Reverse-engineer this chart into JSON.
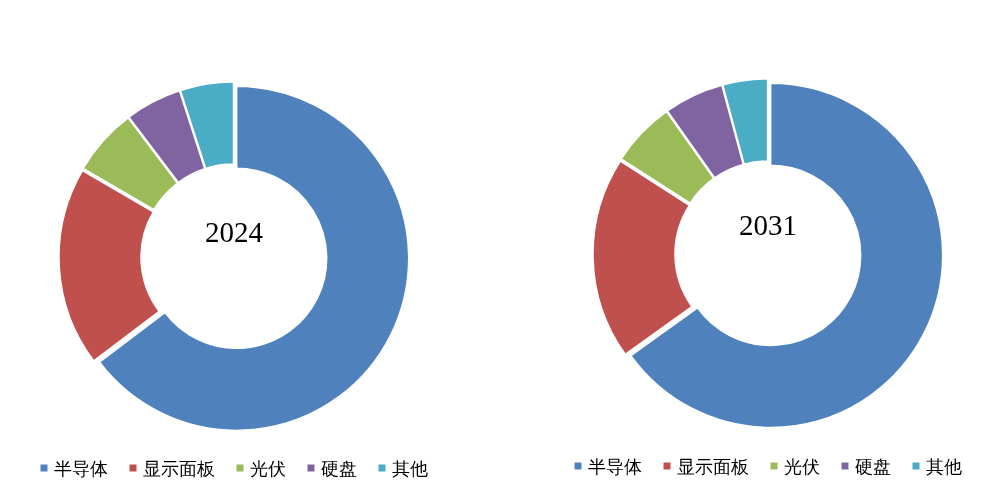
{
  "chart_data": [
    {
      "type": "donut",
      "title": "2024",
      "categories": [
        "半导体",
        "显示面板",
        "光伏",
        "硬盘",
        "其他"
      ],
      "values": [
        64.7,
        18.7,
        6.3,
        5.3,
        5.0
      ],
      "colors": [
        "#4f81bd",
        "#c0504d",
        "#9bbb59",
        "#8064a2",
        "#4bacc6"
      ],
      "legend": "bottom"
    },
    {
      "type": "donut",
      "title": "2031",
      "categories": [
        "半导体",
        "显示面板",
        "光伏",
        "硬盘",
        "其他"
      ],
      "values": [
        65.1,
        19.0,
        6.1,
        5.6,
        4.2
      ],
      "colors": [
        "#4f81bd",
        "#c0504d",
        "#9bbb59",
        "#8064a2",
        "#4bacc6"
      ],
      "legend": "bottom"
    }
  ]
}
